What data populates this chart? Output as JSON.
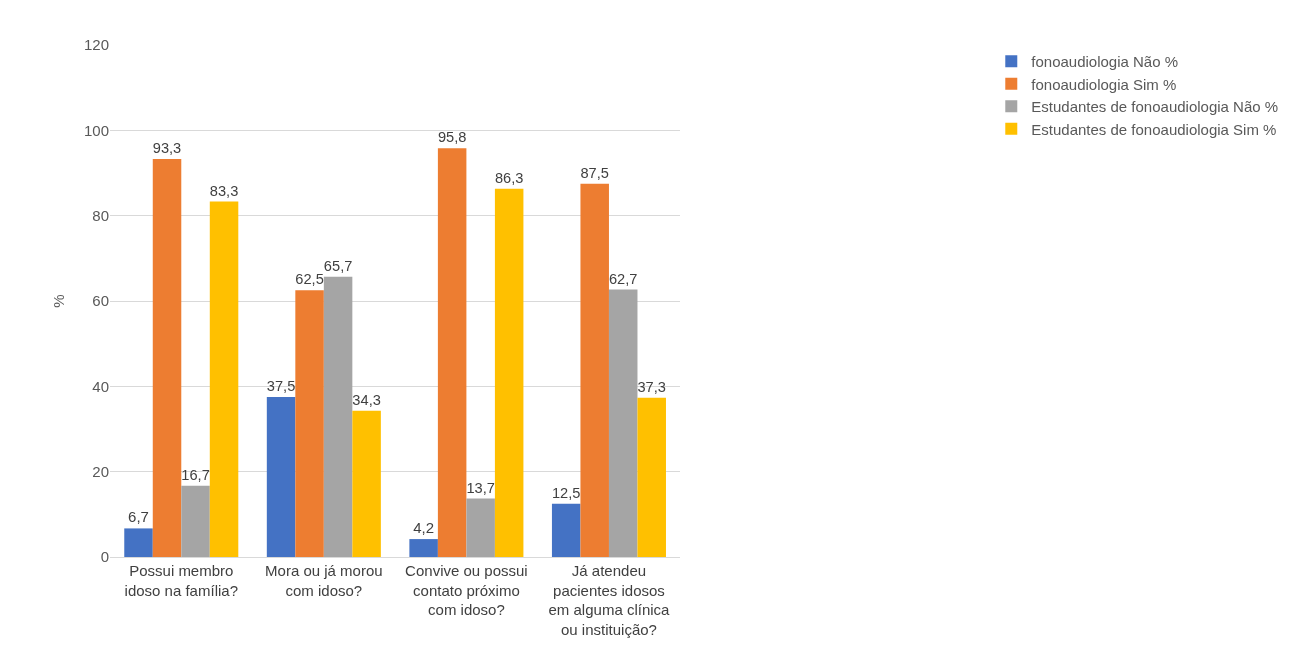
{
  "chart_data": {
    "type": "bar",
    "ylabel": "%",
    "categories": [
      "Possui membro idoso na família?",
      "Mora ou já morou com idoso?",
      "Convive ou possui contato próximo com idoso?",
      "Já atendeu pacientes idosos em alguma clínica ou instituição?"
    ],
    "series": [
      {
        "name": "fonoaudiologia Não %",
        "color": "#4472c4",
        "values": [
          6.7,
          37.5,
          4.2,
          12.5
        ],
        "value_labels": [
          "6,7",
          "37,5",
          "4,2",
          "12,5"
        ]
      },
      {
        "name": "fonoaudiologia Sim %",
        "color": "#ed7d31",
        "values": [
          93.3,
          62.5,
          95.8,
          87.5
        ],
        "value_labels": [
          "93,3",
          "62,5",
          "95,8",
          "87,5"
        ]
      },
      {
        "name": "Estudantes de fonoaudiologia Não %",
        "color": "#a5a5a5",
        "values": [
          16.7,
          65.7,
          13.7,
          62.7
        ],
        "value_labels": [
          "16,7",
          "65,7",
          "13,7",
          "62,7"
        ]
      },
      {
        "name": "Estudantes de fonoaudiologia Sim %",
        "color": "#ffc000",
        "values": [
          83.3,
          34.3,
          86.3,
          37.3
        ],
        "value_labels": [
          "83,3",
          "34,3",
          "86,3",
          "37,3"
        ]
      }
    ],
    "ylim": [
      0,
      120
    ],
    "yticks": [
      0,
      20,
      40,
      60,
      80,
      100,
      120
    ],
    "grid": "y",
    "legend": "top right"
  }
}
